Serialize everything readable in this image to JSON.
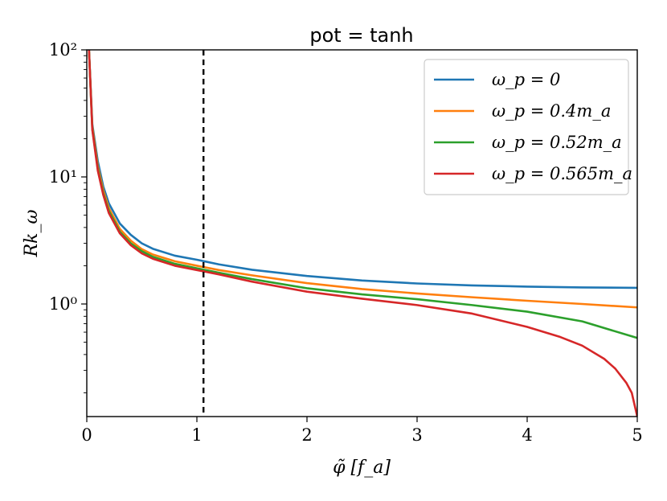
{
  "chart_data": {
    "type": "line",
    "title": "pot = tanh",
    "xlabel": "φ̃ [f_a]",
    "ylabel": "Rk_ω",
    "xlim": [
      0,
      5
    ],
    "ylim": [
      0.13,
      100
    ],
    "yscale": "log",
    "x_ticks": [
      0,
      1,
      2,
      3,
      4,
      5
    ],
    "x_tick_labels": [
      "0",
      "1",
      "2",
      "3",
      "4",
      "5"
    ],
    "y_ticks": [
      1,
      10,
      100
    ],
    "y_tick_labels": [
      "10⁰",
      "10¹",
      "10²"
    ],
    "grid": false,
    "legend_position": "top-right",
    "reference_line": {
      "x": 1.06,
      "style": "dashed",
      "color": "#000000"
    },
    "series": [
      {
        "name": "ω_p = 0",
        "color": "#1f77b4",
        "x": [
          0.02,
          0.05,
          0.1,
          0.15,
          0.2,
          0.3,
          0.4,
          0.5,
          0.6,
          0.8,
          1.0,
          1.2,
          1.5,
          2.0,
          2.5,
          3.0,
          3.5,
          4.0,
          4.5,
          5.0
        ],
        "y": [
          100,
          26,
          13.3,
          8.4,
          6.2,
          4.3,
          3.5,
          3.0,
          2.72,
          2.4,
          2.23,
          2.05,
          1.86,
          1.66,
          1.53,
          1.45,
          1.4,
          1.37,
          1.35,
          1.34
        ]
      },
      {
        "name": "ω_p = 0.4m_a",
        "color": "#ff7f0e",
        "x": [
          0.02,
          0.05,
          0.1,
          0.15,
          0.2,
          0.3,
          0.4,
          0.5,
          0.6,
          0.8,
          1.0,
          1.2,
          1.5,
          2.0,
          2.5,
          3.0,
          3.5,
          4.0,
          4.5,
          5.0
        ],
        "y": [
          100,
          25,
          12.2,
          7.8,
          5.7,
          3.9,
          3.15,
          2.7,
          2.45,
          2.17,
          2.0,
          1.85,
          1.68,
          1.46,
          1.31,
          1.21,
          1.13,
          1.06,
          1.0,
          0.94
        ]
      },
      {
        "name": "ω_p = 0.52m_a",
        "color": "#2ca02c",
        "x": [
          0.02,
          0.05,
          0.1,
          0.15,
          0.2,
          0.3,
          0.4,
          0.5,
          0.6,
          0.8,
          1.0,
          1.2,
          1.5,
          2.0,
          2.5,
          3.0,
          3.5,
          4.0,
          4.5,
          5.0
        ],
        "y": [
          100,
          24,
          11.6,
          7.4,
          5.4,
          3.7,
          3.0,
          2.6,
          2.35,
          2.07,
          1.91,
          1.76,
          1.57,
          1.33,
          1.19,
          1.09,
          0.98,
          0.87,
          0.73,
          0.54
        ]
      },
      {
        "name": "ω_p = 0.565m_a",
        "color": "#d62728",
        "x": [
          0.02,
          0.05,
          0.1,
          0.15,
          0.2,
          0.3,
          0.4,
          0.5,
          0.6,
          0.8,
          1.0,
          1.2,
          1.5,
          2.0,
          2.5,
          3.0,
          3.5,
          4.0,
          4.3,
          4.5,
          4.7,
          4.8,
          4.9,
          4.95,
          5.0
        ],
        "y": [
          100,
          23.5,
          11.2,
          7.2,
          5.2,
          3.6,
          2.9,
          2.5,
          2.27,
          2.0,
          1.85,
          1.71,
          1.5,
          1.25,
          1.1,
          0.98,
          0.84,
          0.66,
          0.55,
          0.47,
          0.37,
          0.31,
          0.24,
          0.2,
          0.13
        ]
      }
    ]
  }
}
